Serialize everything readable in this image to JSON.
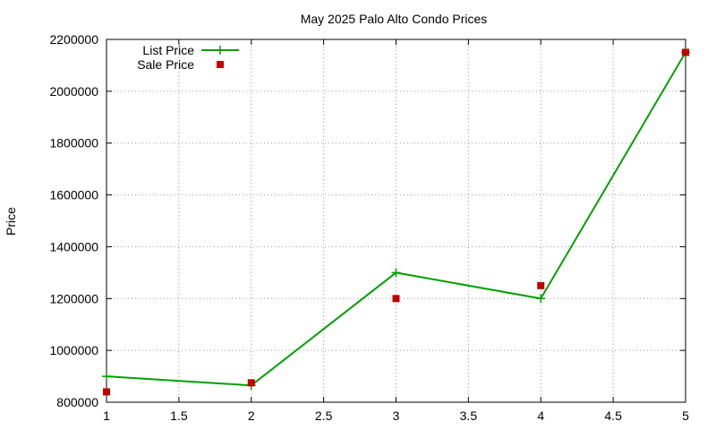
{
  "chart_data": {
    "type": "line",
    "title": "May 2025 Palo Alto Condo Prices",
    "y_label": "Price",
    "x": [
      1,
      2,
      3,
      4,
      5
    ],
    "series": [
      {
        "name": "List Price",
        "color": "#00a000",
        "style": "linespoints",
        "values": [
          900000,
          865000,
          1300000,
          1200000,
          2150000
        ]
      },
      {
        "name": "Sale Price",
        "color": "#c00000",
        "style": "points",
        "values": [
          840000,
          875000,
          1200000,
          1250000,
          2150000
        ]
      }
    ],
    "xlim": [
      1,
      5
    ],
    "xticks": [
      1,
      1.5,
      2,
      2.5,
      3,
      3.5,
      4,
      4.5,
      5
    ],
    "ylim": [
      800000,
      2200000
    ],
    "yticks": [
      800000,
      1000000,
      1200000,
      1400000,
      1600000,
      1800000,
      2000000,
      2200000
    ],
    "grid": true,
    "legend": "top-left"
  }
}
